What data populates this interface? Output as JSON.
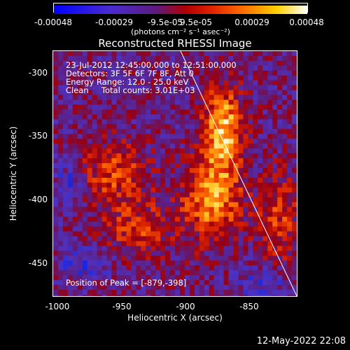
{
  "colorbar": {
    "ticks": [
      "-0.00048",
      "-0.00029",
      "-9.5e-05",
      "9.5e-05",
      "0.00029",
      "0.00048"
    ],
    "units": "(photons cm⁻² s⁻¹ asec⁻²)"
  },
  "title": "Reconstructed RHESSI Image",
  "info": {
    "time_range": "23-Jul-2012 12:45:00.000 to 12:51:00.000",
    "detectors": "Detectors: 3F 5F 6F 7F 8F, Att 0",
    "energy": "Energy Range: 12.0 - 25.0 keV",
    "method": "Clean     Total counts: 3.01E+03"
  },
  "peak_label": "Position of Peak = [-879,-398]",
  "axes": {
    "xlabel": "Heliocentric X (arcsec)",
    "ylabel": "Heliocentric Y (arcsec)",
    "xticks": [
      "-1000",
      "-950",
      "-900",
      "-850"
    ],
    "yticks": [
      "-300",
      "-350",
      "-400",
      "-450"
    ]
  },
  "timestamp": "12-May-2022 22:08",
  "colors": {
    "low": "#0000ff",
    "mid_low": "#7030a0",
    "mid": "#cc0000",
    "mid_high": "#ff8800",
    "high": "#ffffff"
  }
}
